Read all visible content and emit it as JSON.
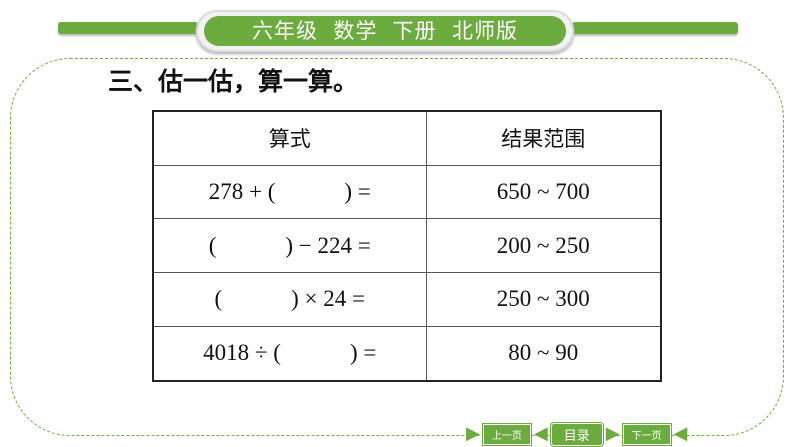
{
  "header": {
    "banner": "六年级  数学  下册  北师版"
  },
  "section_title": "三、估一估，算一算。",
  "table": {
    "headers": [
      "算式",
      "结果范围"
    ],
    "rows": [
      [
        "278 + (            ) =",
        "650 ~ 700"
      ],
      [
        "(            ) − 224 =",
        "200 ~ 250"
      ],
      [
        "(            ) × 24 =",
        "250 ~ 300"
      ],
      [
        "4018 ÷ (            ) =",
        "80 ~ 90"
      ]
    ]
  },
  "nav": {
    "prev": "上一页",
    "toc": "目录",
    "next": "下一页"
  },
  "colors": {
    "accent": "#6cab3e"
  }
}
